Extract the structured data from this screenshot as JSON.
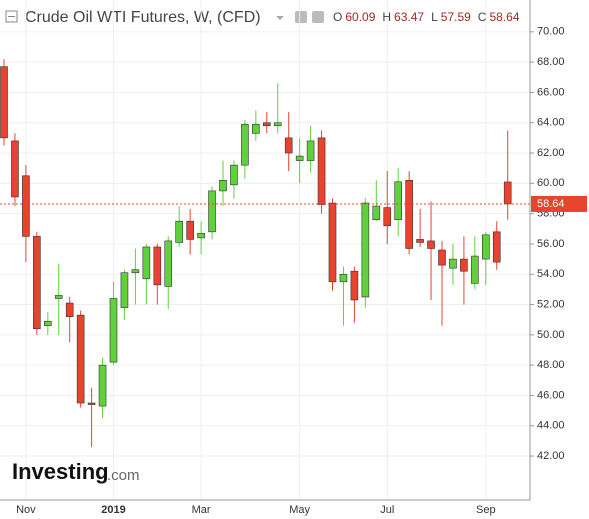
{
  "chart_data": {
    "type": "candlestick",
    "title": "Crude Oil WTI Futures, W, (CFD)",
    "ohlc_labels": [
      "O",
      "H",
      "L",
      "C"
    ],
    "logo": "Investing",
    "logo_suffix": ".com",
    "up_color": "#5ed13b",
    "down_color": "#e8432e",
    "categories": [
      null,
      null,
      "Nov",
      null,
      null,
      null,
      null,
      null,
      null,
      null,
      "2019",
      null,
      null,
      null,
      null,
      null,
      null,
      null,
      "Mar",
      null,
      null,
      null,
      null,
      null,
      null,
      null,
      null,
      "May",
      null,
      null,
      null,
      null,
      null,
      null,
      null,
      "Jul",
      null,
      null,
      null,
      null,
      null,
      null,
      null,
      null,
      "Sep",
      null,
      null
    ],
    "open": [
      67.7,
      62.8,
      60.5,
      56.5,
      50.6,
      52.4,
      52.1,
      51.3,
      45.5,
      45.3,
      48.2,
      51.8,
      54.1,
      53.7,
      55.8,
      53.2,
      56.1,
      57.5,
      56.4,
      56.8,
      59.5,
      59.9,
      61.2,
      63.3,
      64.0,
      63.8,
      63.0,
      61.5,
      61.5,
      63.0,
      58.7,
      53.5,
      54.2,
      52.5,
      57.6,
      58.4,
      57.6,
      60.2,
      56.3,
      56.2,
      55.6,
      54.4,
      55.0,
      53.4,
      55.0,
      56.8,
      60.09
    ],
    "high": [
      68.2,
      63.3,
      61.2,
      56.8,
      51.5,
      54.7,
      52.5,
      51.6,
      46.5,
      48.5,
      53.5,
      54.3,
      55.7,
      56.0,
      56.0,
      56.5,
      58.5,
      58.3,
      57.5,
      59.8,
      61.5,
      61.5,
      64.2,
      64.8,
      64.7,
      66.6,
      64.7,
      63.0,
      63.8,
      63.5,
      59.0,
      54.5,
      54.5,
      59.0,
      60.2,
      60.8,
      61.0,
      60.8,
      58.3,
      58.8,
      56.2,
      56.0,
      56.5,
      56.5,
      56.8,
      57.5,
      63.47
    ],
    "low": [
      62.5,
      58.5,
      54.8,
      50.0,
      50.0,
      50.0,
      49.5,
      45.2,
      42.6,
      44.5,
      48.0,
      51.0,
      52.0,
      52.0,
      52.0,
      51.7,
      55.8,
      55.3,
      55.3,
      56.3,
      58.5,
      59.0,
      60.3,
      62.8,
      63.3,
      63.3,
      60.8,
      60.0,
      60.7,
      58.0,
      52.9,
      50.6,
      50.8,
      51.8,
      57.5,
      56.0,
      56.5,
      55.3,
      55.8,
      52.3,
      50.6,
      53.3,
      52.0,
      53.0,
      53.3,
      54.3,
      57.59
    ],
    "close": [
      63.0,
      59.1,
      56.5,
      50.4,
      50.9,
      52.6,
      51.2,
      45.5,
      45.4,
      48.0,
      52.4,
      54.1,
      54.3,
      55.8,
      53.3,
      56.2,
      57.5,
      56.3,
      56.7,
      59.5,
      60.2,
      61.2,
      63.9,
      63.9,
      63.8,
      64.0,
      62.0,
      61.8,
      62.8,
      58.6,
      53.5,
      54.0,
      52.3,
      58.7,
      58.5,
      57.2,
      60.1,
      55.7,
      56.1,
      55.7,
      54.6,
      55.0,
      54.2,
      55.2,
      56.6,
      54.8,
      58.64
    ],
    "ylim": [
      39.1,
      72.1
    ],
    "yticks": [
      {
        "value": 42,
        "label": "42.00"
      },
      {
        "value": 44,
        "label": "44.00"
      },
      {
        "value": 46,
        "label": "46.00"
      },
      {
        "value": 48,
        "label": "48.00"
      },
      {
        "value": 50,
        "label": "50.00"
      },
      {
        "value": 52,
        "label": "52.00"
      },
      {
        "value": 54,
        "label": "54.00"
      },
      {
        "value": 56,
        "label": "56.00"
      },
      {
        "value": 58,
        "label": "58.00"
      },
      {
        "value": 60,
        "label": "60.00"
      },
      {
        "value": 62,
        "label": "62.00"
      },
      {
        "value": 64,
        "label": "64.00"
      },
      {
        "value": 66,
        "label": "66.00"
      },
      {
        "value": 68,
        "label": "68.00"
      },
      {
        "value": 70,
        "label": "70.00"
      }
    ],
    "grid": true
  }
}
